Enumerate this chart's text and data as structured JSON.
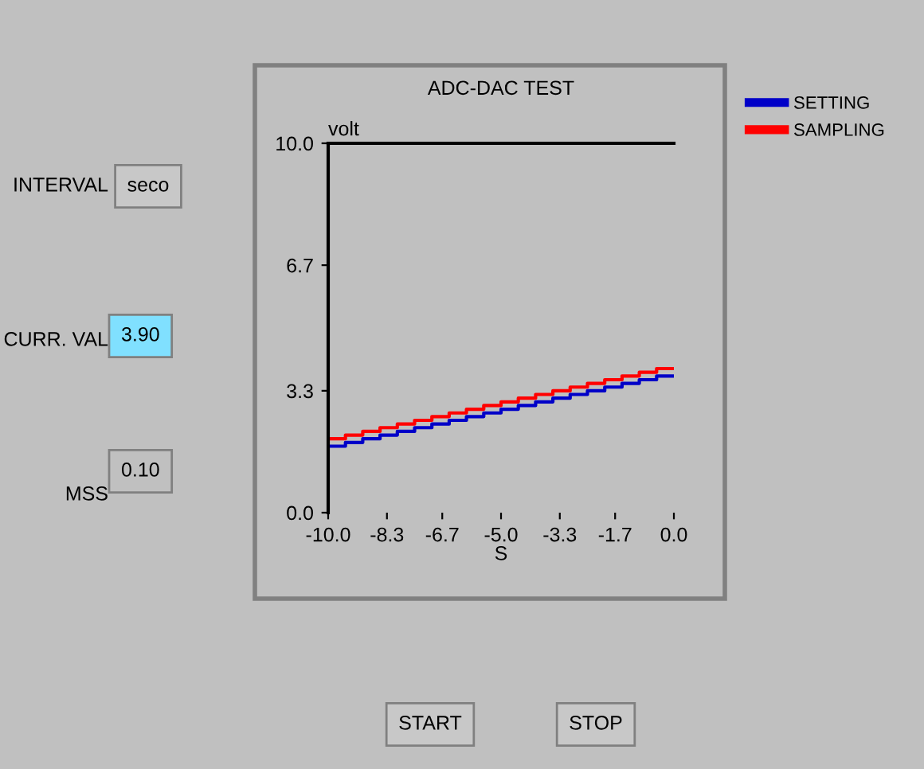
{
  "chart_data": {
    "type": "step",
    "title": "ADC-DAC TEST",
    "xlabel": "S",
    "ylabel": "volt",
    "x": [
      -10,
      -9.5,
      -9,
      -8.5,
      -8,
      -7.5,
      -7,
      -6.5,
      -6,
      -5.5,
      -5,
      -4.5,
      -4,
      -3.5,
      -3,
      -2.5,
      -2,
      -1.5,
      -1,
      -0.5,
      0
    ],
    "series": [
      {
        "name": "SETTING",
        "color": "#0000c8",
        "values": [
          1.8,
          1.9,
          2.0,
          2.1,
          2.2,
          2.3,
          2.4,
          2.5,
          2.6,
          2.7,
          2.8,
          2.9,
          3.0,
          3.1,
          3.2,
          3.3,
          3.4,
          3.5,
          3.6,
          3.7,
          3.7
        ]
      },
      {
        "name": "SAMPLING",
        "color": "#ff0000",
        "values": [
          2.0,
          2.1,
          2.2,
          2.3,
          2.4,
          2.5,
          2.6,
          2.7,
          2.8,
          2.9,
          3.0,
          3.1,
          3.2,
          3.3,
          3.4,
          3.5,
          3.6,
          3.7,
          3.8,
          3.9,
          3.9
        ]
      }
    ],
    "xlim": [
      -10,
      0
    ],
    "ylim": [
      0,
      10
    ],
    "xticks": [
      {
        "value": -10,
        "label": "-10.0"
      },
      {
        "value": -8.3,
        "label": "-8.3"
      },
      {
        "value": -6.7,
        "label": "-6.7"
      },
      {
        "value": -5,
        "label": "-5.0"
      },
      {
        "value": -3.3,
        "label": "-3.3"
      },
      {
        "value": -1.7,
        "label": "-1.7"
      },
      {
        "value": 0,
        "label": "0.0"
      }
    ],
    "yticks": [
      {
        "value": 0,
        "label": "0.0"
      },
      {
        "value": 3.3,
        "label": "3.3"
      },
      {
        "value": 6.7,
        "label": "6.7"
      },
      {
        "value": 10,
        "label": "10.0"
      }
    ],
    "grid": false,
    "legend": "right",
    "line_style": "solid",
    "marker": "none",
    "annotations": [
      "INTERVAL",
      "seco",
      "CURR. VAL",
      "3.90",
      "MSS",
      "0.10",
      "START",
      "STOP"
    ]
  }
}
